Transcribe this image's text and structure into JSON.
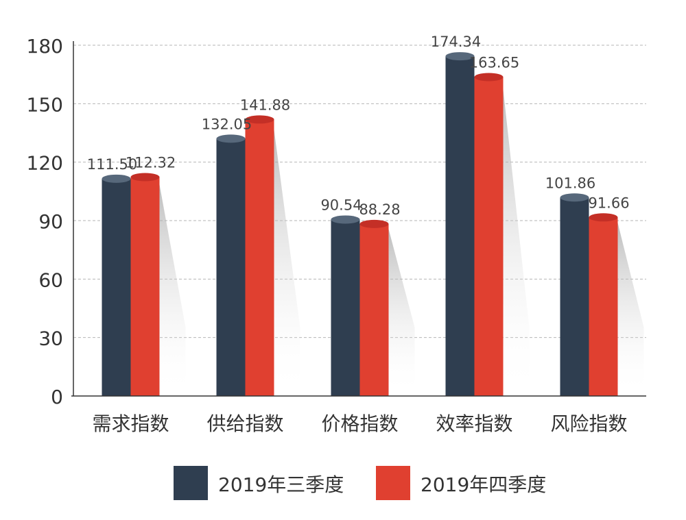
{
  "chart_data": {
    "type": "bar",
    "categories": [
      "需求指数",
      "供给指数",
      "价格指数",
      "效率指数",
      "风险指数"
    ],
    "series": [
      {
        "name": "2019年三季度",
        "values": [
          111.5,
          132.05,
          90.54,
          174.34,
          101.86
        ],
        "labels": [
          "111.50",
          "132.05",
          "90.54",
          "174.34",
          "101.86"
        ],
        "color": "#2f3e50",
        "top_color": "#57687b"
      },
      {
        "name": "2019年四季度",
        "values": [
          112.32,
          141.88,
          88.28,
          163.65,
          91.66
        ],
        "labels": [
          "112.32",
          "141.88",
          "88.28",
          "163.65",
          "91.66"
        ],
        "color": "#e04030",
        "top_color": "#c42f26"
      }
    ],
    "ylim": [
      0,
      180
    ],
    "yticks": [
      "0",
      "30",
      "60",
      "90",
      "120",
      "150",
      "180"
    ],
    "grid": "dashed horizontal",
    "legend": "bottom",
    "style": "3d cylinder bars with shadow"
  }
}
